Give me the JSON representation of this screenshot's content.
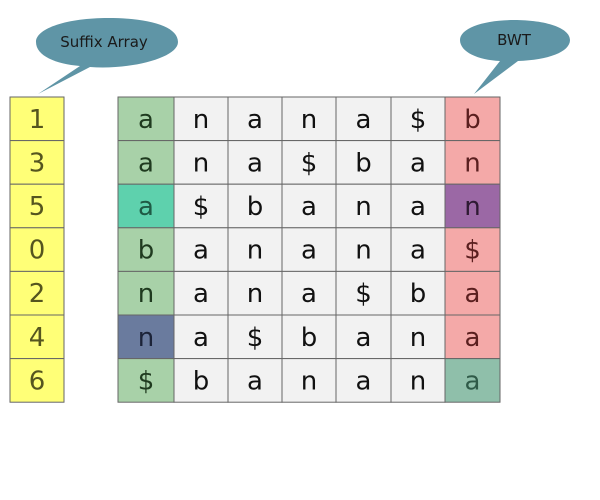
{
  "callouts": {
    "suffix_array_label": "Suffix Array",
    "bwt_label": "BWT"
  },
  "suffix_array": [
    "1",
    "3",
    "5",
    "0",
    "2",
    "4",
    "6"
  ],
  "matrix_rows": [
    [
      "a",
      "n",
      "a",
      "n",
      "a",
      "$",
      "b"
    ],
    [
      "a",
      "n",
      "a",
      "$",
      "b",
      "a",
      "n"
    ],
    [
      "a",
      "$",
      "b",
      "a",
      "n",
      "a",
      "n"
    ],
    [
      "b",
      "a",
      "n",
      "a",
      "n",
      "a",
      "$"
    ],
    [
      "n",
      "a",
      "n",
      "a",
      "$",
      "b",
      "a"
    ],
    [
      "n",
      "a",
      "$",
      "b",
      "a",
      "n",
      "a"
    ],
    [
      "$",
      "b",
      "a",
      "n",
      "a",
      "n",
      "a"
    ]
  ],
  "colors": {
    "callout_fill": "#5f95a6",
    "suffix_array_fill": "#ffff77",
    "middle_fill": "#f2f2f2",
    "first_column_fills": [
      "#a8d1a8",
      "#a8d1a8",
      "#5ed1ad",
      "#a8d1a8",
      "#a8d1a8",
      "#6a7b9e",
      "#a8d1a8"
    ],
    "last_column_fills": [
      "#f4a9a8",
      "#f4a9a8",
      "#9b68a5",
      "#f4a9a8",
      "#f4a9a8",
      "#f4a9a8",
      "#8fbfaa"
    ],
    "first_column_text": [
      "#1f3a1f",
      "#1f3a1f",
      "#1f5a45",
      "#1f3a1f",
      "#1f3a1f",
      "#1c2338",
      "#1f3a1f"
    ],
    "last_column_text": [
      "#5a1f1f",
      "#5a1f1f",
      "#2e1a33",
      "#5a1f1f",
      "#5a1f1f",
      "#5a1f1f",
      "#2f5a48"
    ],
    "suffix_array_text": "#55551f",
    "middle_text": "#111111",
    "grid_line": "#666666"
  }
}
